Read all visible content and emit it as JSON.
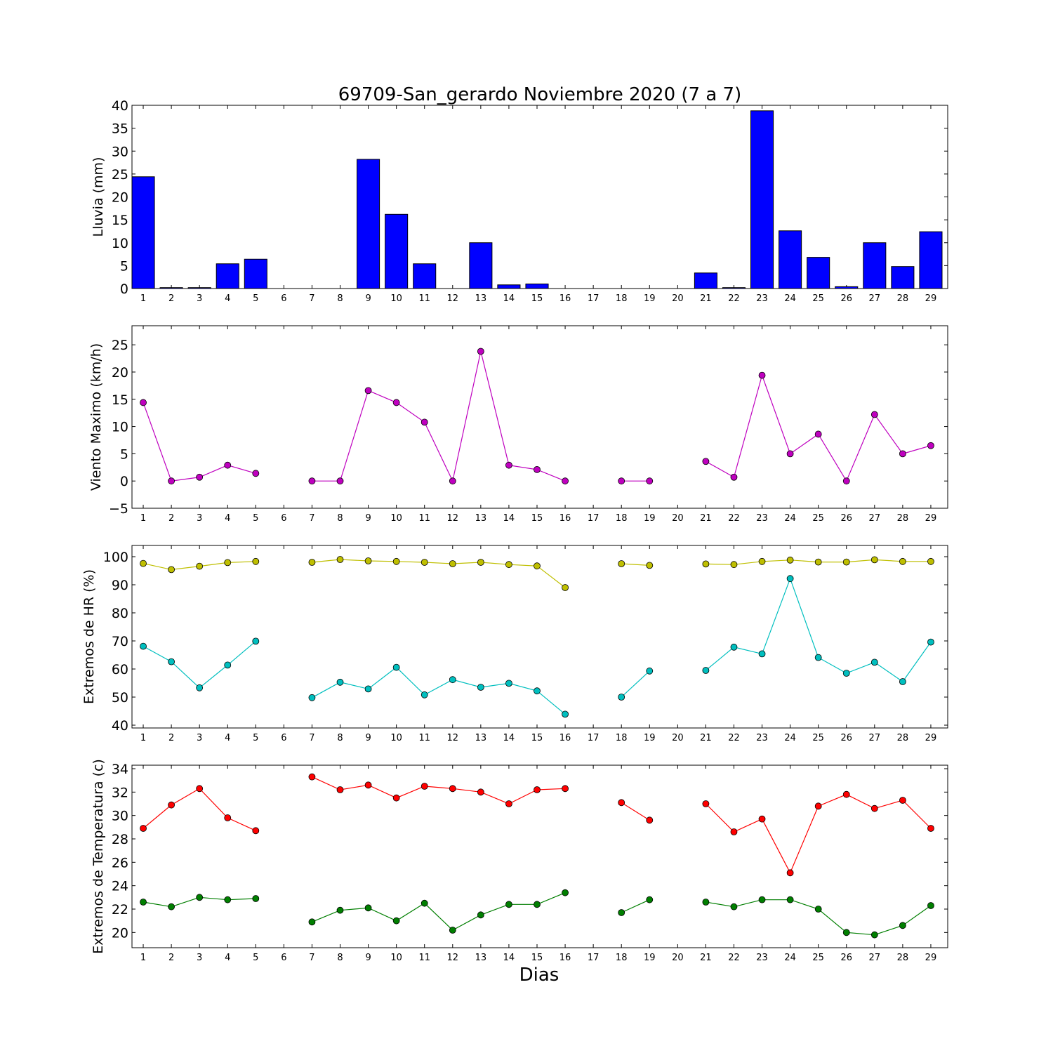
{
  "chart_data": [
    {
      "type": "bar",
      "title": "69709-San_gerardo Noviembre 2020  (7 a 7)",
      "ylabel": "Lluvia (mm)",
      "xlabel": "",
      "ylim": [
        0,
        40
      ],
      "yticks": [
        0,
        5,
        10,
        15,
        20,
        25,
        30,
        35,
        40
      ],
      "categories": [
        1,
        2,
        3,
        4,
        5,
        6,
        7,
        8,
        9,
        10,
        11,
        12,
        13,
        14,
        15,
        16,
        17,
        18,
        19,
        20,
        21,
        22,
        23,
        24,
        25,
        26,
        27,
        28,
        29
      ],
      "values": [
        24.4,
        0.2,
        0.2,
        5.4,
        6.4,
        0,
        0,
        0,
        28.2,
        16.2,
        5.4,
        0,
        10.0,
        0.8,
        1.0,
        0,
        0,
        0,
        0,
        0,
        3.4,
        0.2,
        38.8,
        12.6,
        6.8,
        0.4,
        10.0,
        4.8,
        12.4
      ],
      "colors": {
        "bar": "#0000ff"
      }
    },
    {
      "type": "line",
      "ylabel": "Viento Maximo (km/h)",
      "ylim": [
        -5,
        28.5
      ],
      "yticks": [
        -5,
        0,
        5,
        10,
        15,
        20,
        25
      ],
      "x": [
        1,
        2,
        3,
        4,
        5,
        6,
        7,
        8,
        9,
        10,
        11,
        12,
        13,
        14,
        15,
        16,
        17,
        18,
        19,
        20,
        21,
        22,
        23,
        24,
        25,
        26,
        27,
        28,
        29
      ],
      "series": [
        {
          "color": "#bf00bf",
          "values": [
            14.4,
            0,
            0.7,
            2.9,
            1.4,
            null,
            0,
            0,
            16.6,
            14.4,
            10.8,
            0,
            23.8,
            2.9,
            2.1,
            0,
            null,
            0,
            0,
            null,
            3.6,
            0.7,
            19.4,
            5.0,
            8.6,
            0,
            12.2,
            5.0,
            6.5
          ]
        }
      ]
    },
    {
      "type": "line",
      "ylabel": "Extremos de HR (%)",
      "ylim": [
        39,
        104
      ],
      "yticks": [
        40,
        50,
        60,
        70,
        80,
        90,
        100
      ],
      "x": [
        1,
        2,
        3,
        4,
        5,
        6,
        7,
        8,
        9,
        10,
        11,
        12,
        13,
        14,
        15,
        16,
        17,
        18,
        19,
        20,
        21,
        22,
        23,
        24,
        25,
        26,
        27,
        28,
        29
      ],
      "series": [
        {
          "color": "#bfbf00",
          "values": [
            97.6,
            95.4,
            96.6,
            97.9,
            98.3,
            null,
            98.0,
            99.0,
            98.5,
            98.3,
            98.0,
            97.5,
            98.0,
            97.2,
            96.7,
            89.0,
            null,
            97.5,
            96.9,
            null,
            97.4,
            97.2,
            98.3,
            98.8,
            98.1,
            98.1,
            98.9,
            98.3,
            98.3
          ]
        },
        {
          "color": "#00bfbf",
          "values": [
            68.1,
            62.6,
            53.3,
            61.4,
            69.9,
            null,
            49.8,
            55.3,
            52.9,
            60.6,
            50.8,
            56.2,
            53.5,
            54.9,
            52.2,
            43.9,
            null,
            50.0,
            59.3,
            null,
            59.5,
            67.8,
            65.4,
            92.2,
            64.1,
            58.5,
            62.4,
            55.5,
            69.6
          ]
        }
      ]
    },
    {
      "type": "line",
      "ylabel": "Extremos de Temperatura (c)",
      "xlabel": "Dias",
      "ylim": [
        18.7,
        34.3
      ],
      "yticks": [
        20,
        22,
        24,
        26,
        28,
        30,
        32,
        34
      ],
      "x": [
        1,
        2,
        3,
        4,
        5,
        6,
        7,
        8,
        9,
        10,
        11,
        12,
        13,
        14,
        15,
        16,
        17,
        18,
        19,
        20,
        21,
        22,
        23,
        24,
        25,
        26,
        27,
        28,
        29
      ],
      "series": [
        {
          "color": "#ff0000",
          "values": [
            28.9,
            30.9,
            32.3,
            29.8,
            28.7,
            null,
            33.3,
            32.2,
            32.6,
            31.5,
            32.5,
            32.3,
            32.0,
            31.0,
            32.2,
            32.3,
            null,
            31.1,
            29.6,
            null,
            31.0,
            28.6,
            29.7,
            25.1,
            30.8,
            31.8,
            30.6,
            31.3,
            28.9
          ]
        },
        {
          "color": "#007f00",
          "values": [
            22.6,
            22.2,
            23.0,
            22.8,
            22.9,
            null,
            20.9,
            21.9,
            22.1,
            21.0,
            22.5,
            20.2,
            21.5,
            22.4,
            22.4,
            23.4,
            null,
            21.7,
            22.8,
            null,
            22.6,
            22.2,
            22.8,
            22.8,
            22.0,
            20.0,
            19.8,
            20.6,
            22.3
          ]
        }
      ]
    }
  ]
}
